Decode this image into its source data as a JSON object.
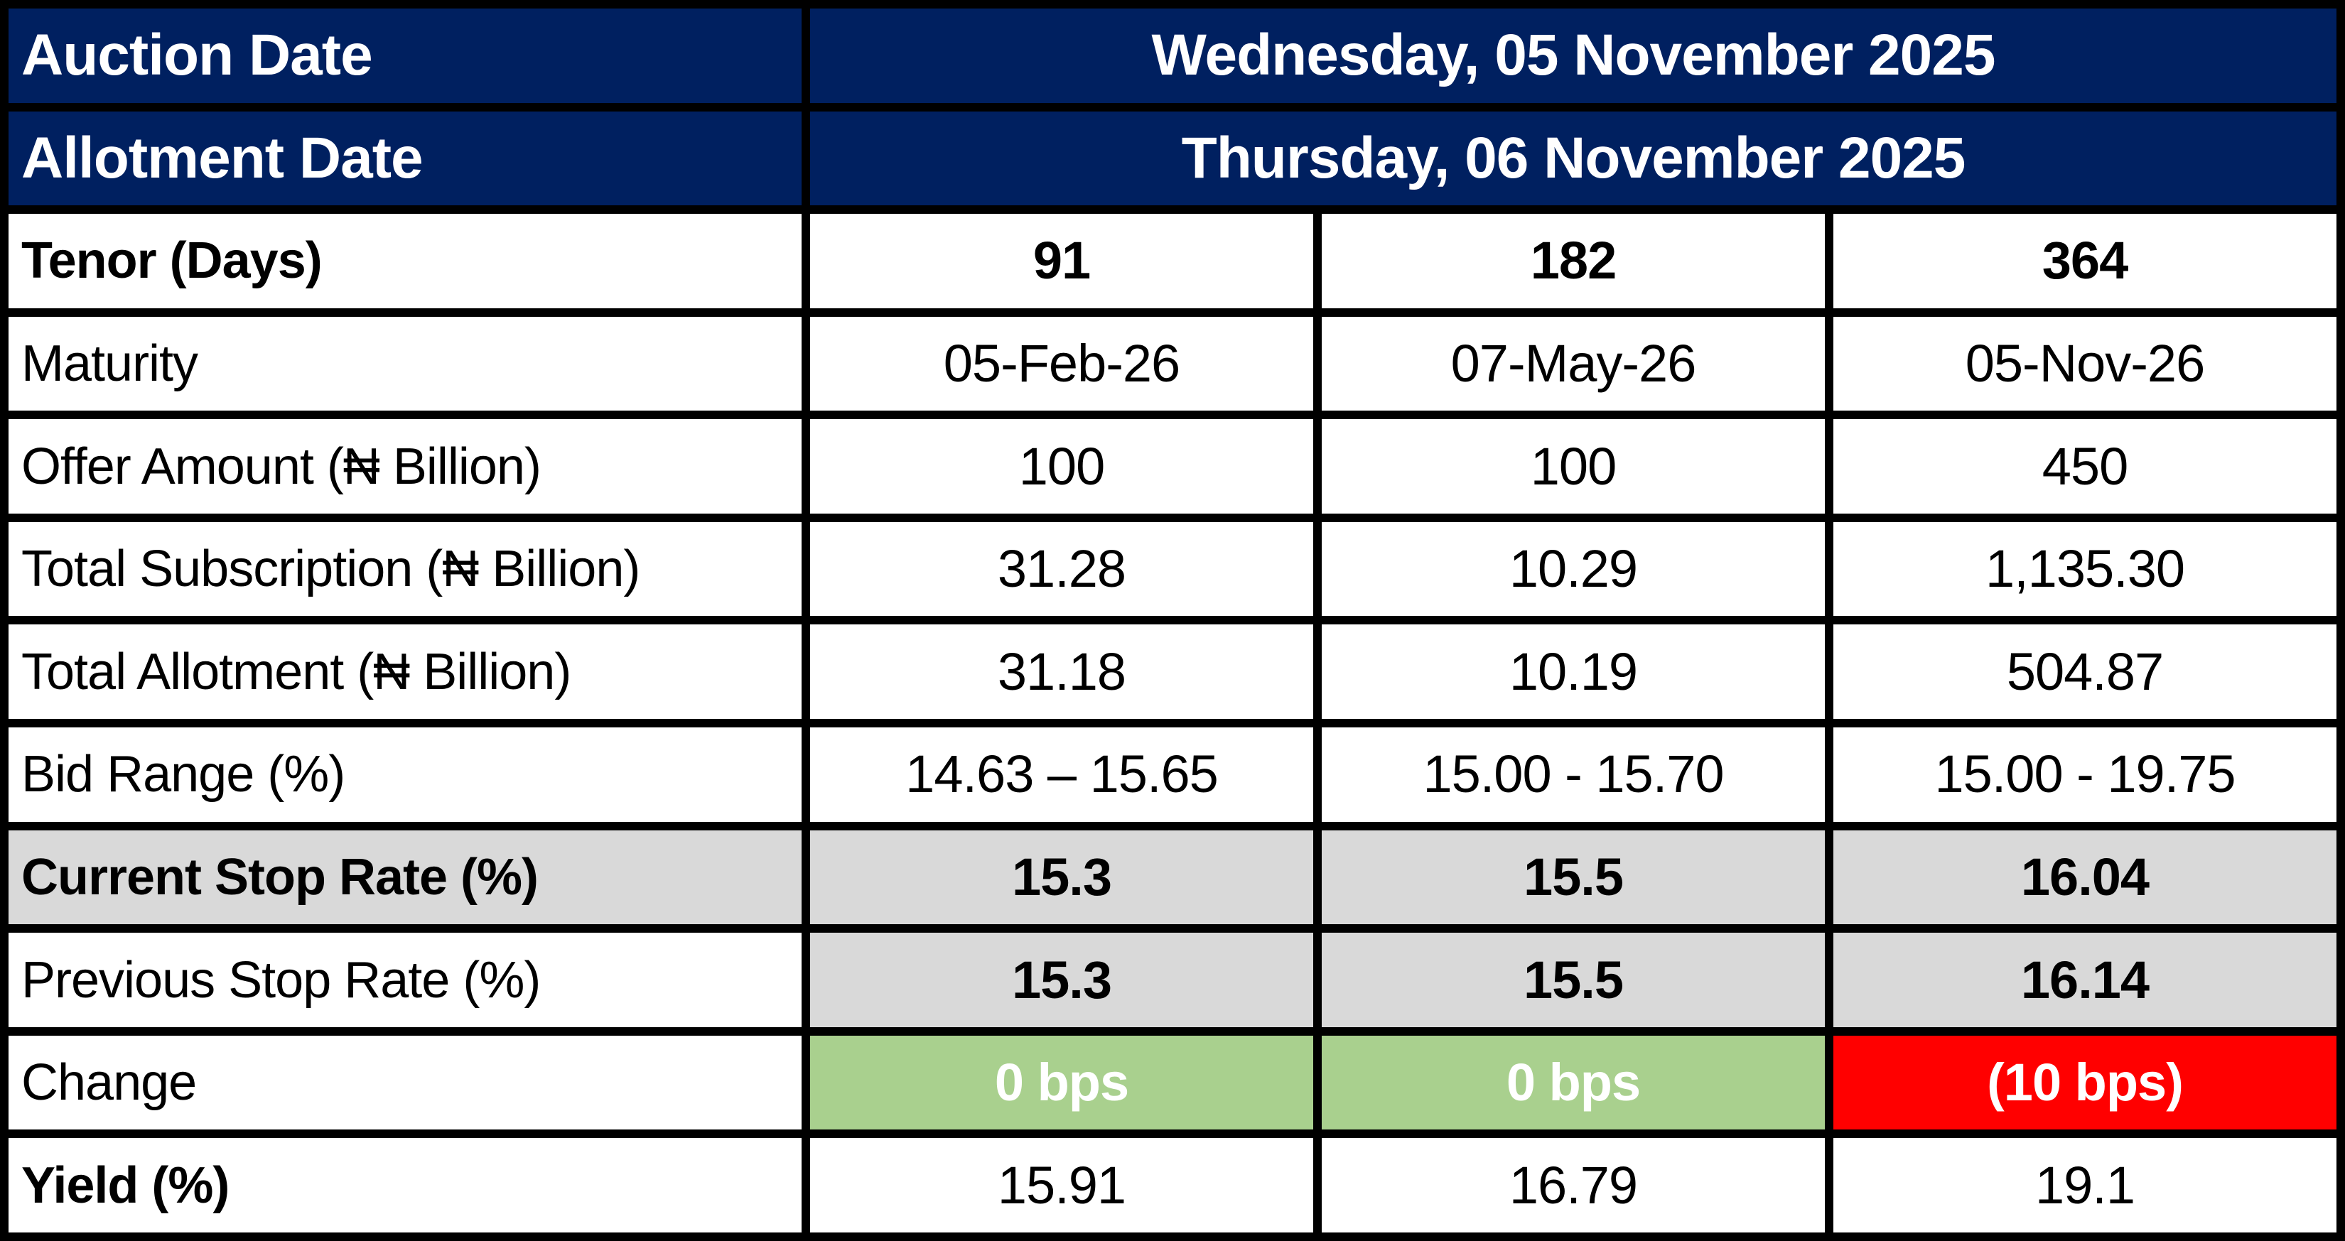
{
  "chart_data": {
    "type": "table",
    "meta_rows": [
      {
        "label": "Auction Date",
        "value": "Wednesday, 05 November 2025"
      },
      {
        "label": "Allotment Date",
        "value": "Thursday, 06 November 2025"
      }
    ],
    "rows": [
      {
        "label": "Tenor (Days)",
        "values": [
          "91",
          "182",
          "364"
        ]
      },
      {
        "label": "Maturity",
        "values": [
          "05-Feb-26",
          "07-May-26",
          "05-Nov-26"
        ]
      },
      {
        "label": "Offer Amount (₦ Billion)",
        "values": [
          "100",
          "100",
          "450"
        ]
      },
      {
        "label": "Total Subscription (₦ Billion)",
        "values": [
          "31.28",
          "10.29",
          "1,135.30"
        ]
      },
      {
        "label": "Total Allotment (₦ Billion)",
        "values": [
          "31.18",
          "10.19",
          "504.87"
        ]
      },
      {
        "label": "Bid Range (%)",
        "values": [
          "14.63 – 15.65",
          "15.00 - 15.70",
          "15.00 - 19.75"
        ]
      },
      {
        "label": "Current Stop Rate (%)",
        "values": [
          "15.3",
          "15.5",
          "16.04"
        ]
      },
      {
        "label": "Previous Stop Rate (%)",
        "values": [
          "15.3",
          "15.5",
          "16.14"
        ]
      },
      {
        "label": "Change",
        "values": [
          "0 bps",
          "0 bps",
          "(10 bps)"
        ]
      },
      {
        "label": "Yield (%)",
        "values": [
          "15.91",
          "16.79",
          "19.1"
        ]
      }
    ],
    "styles": {
      "header_bg": "#002060",
      "header_text": "#FFFFFF",
      "stripe_gray_bg": "#D9D9D9",
      "change_flat_bg": "#A9D08E",
      "change_down_bg": "#FF0000",
      "change_text": "#FFFFFF",
      "cell_bg": "#FFFFFF",
      "text_color": "#000000",
      "border_color": "#000000"
    },
    "layout": {
      "grid": "on",
      "legend": "none",
      "value_alignment": "center",
      "label_alignment": "left"
    }
  }
}
